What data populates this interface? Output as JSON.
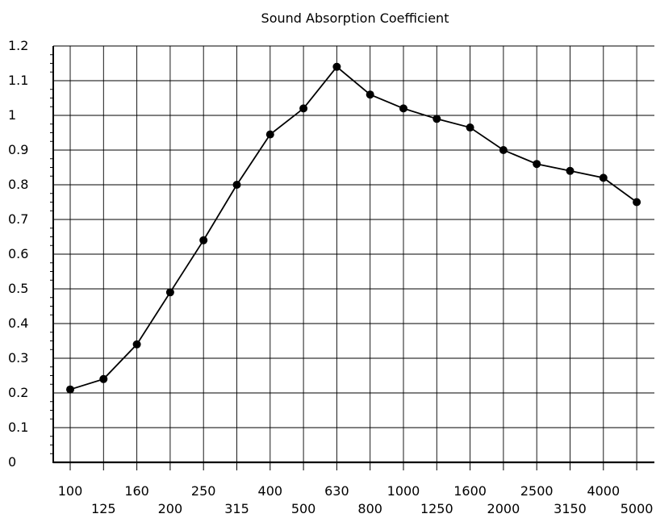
{
  "chart_data": {
    "type": "line",
    "title": "Sound Absorption Coefficient",
    "xlabel": "",
    "ylabel": "",
    "categories": [
      "100",
      "125",
      "160",
      "200",
      "250",
      "315",
      "400",
      "500",
      "630",
      "800",
      "1000",
      "1250",
      "1600",
      "2000",
      "2500",
      "3150",
      "4000",
      "5000"
    ],
    "series": [
      {
        "values": [
          0.21,
          0.24,
          0.34,
          0.49,
          0.64,
          0.8,
          0.945,
          1.02,
          1.14,
          1.06,
          1.02,
          0.99,
          0.965,
          0.9,
          0.86,
          0.84,
          0.82,
          0.75
        ]
      }
    ],
    "ylim": [
      0,
      1.2
    ],
    "yticks": [
      "0",
      "0.1",
      "0.2",
      "0.3",
      "0.4",
      "0.5",
      "0.6",
      "0.7",
      "0.8",
      "0.9",
      "1",
      "1.1",
      "1.2"
    ],
    "grid": true,
    "colors": {
      "line": "#000000",
      "grid": "#000000",
      "marker": "#000000"
    }
  }
}
